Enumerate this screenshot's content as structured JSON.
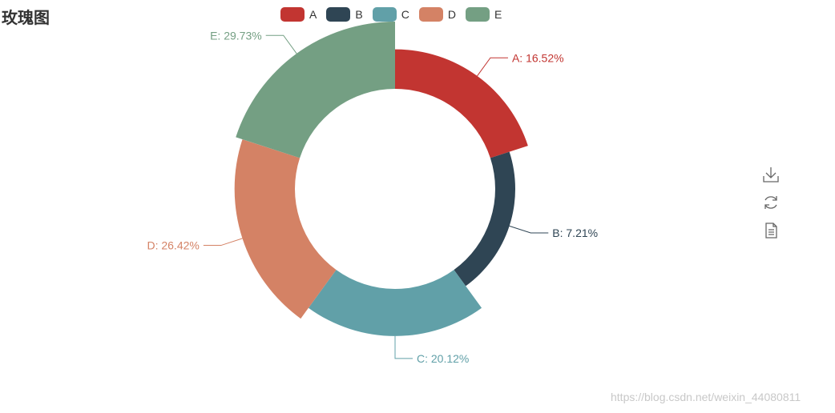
{
  "title": "玫瑰图",
  "watermark": "https://blog.csdn.net/weixin_44080811",
  "toolbox": [
    "download-icon",
    "refresh-icon",
    "data-view-icon"
  ],
  "chart_data": {
    "type": "pie",
    "variant": "rose",
    "title": "玫瑰图",
    "legend": {
      "placement": "top-center",
      "items": [
        "A",
        "B",
        "C",
        "D",
        "E"
      ]
    },
    "series": [
      {
        "name": "A",
        "value": 16.52,
        "label": "A: 16.52%",
        "color": "#c23531"
      },
      {
        "name": "B",
        "value": 7.21,
        "label": "B: 7.21%",
        "color": "#2f4554"
      },
      {
        "name": "C",
        "value": 20.12,
        "label": "C: 20.12%",
        "color": "#61a0a8"
      },
      {
        "name": "D",
        "value": 26.42,
        "label": "D: 26.42%",
        "color": "#d48265"
      },
      {
        "name": "E",
        "value": 29.73,
        "label": "E: 29.73%",
        "color": "#749f83"
      }
    ]
  }
}
